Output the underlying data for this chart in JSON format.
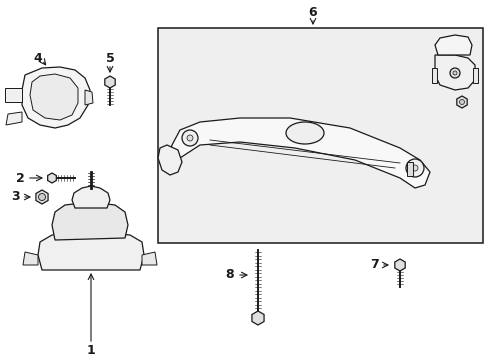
{
  "bg_color": "#ffffff",
  "lc": "#1a1a1a",
  "gray_fill": "#f0f0f0",
  "box_fill": "#efefef",
  "figsize": [
    4.9,
    3.6
  ],
  "dpi": 100,
  "xlim": [
    0,
    490
  ],
  "ylim": [
    0,
    360
  ]
}
